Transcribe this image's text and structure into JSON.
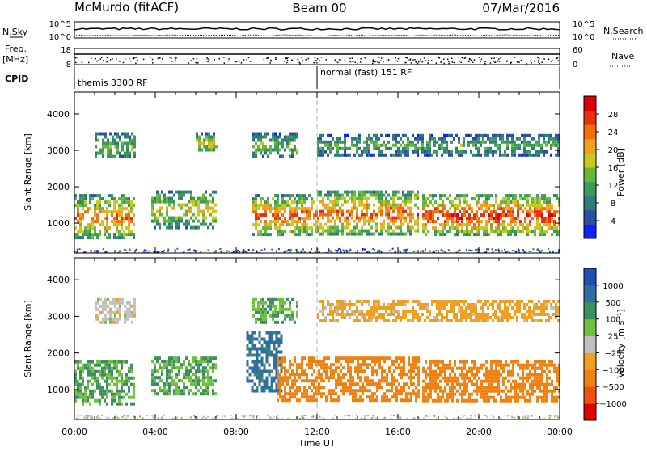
{
  "header": {
    "station": "McMurdo (fitACF)",
    "beam": "Beam 00",
    "date": "07/Mar/2016"
  },
  "strips": {
    "nsky_label": "N.Sky",
    "nsky_ticks": [
      "10^5",
      "10^0"
    ],
    "nsearch_label": "N.Search",
    "nsearch_ticks": [
      "10^5",
      "10^0"
    ],
    "freq_label": "Freq.",
    "freq_unit": "[MHz]",
    "freq_ticks": [
      "18",
      "8"
    ],
    "nave_label": "Nave",
    "nave_ticks": [
      "60",
      "0"
    ],
    "cpid_label": "CPID",
    "cpid_segments": [
      "themis 3300 RF",
      "normal (fast) 151 RF"
    ]
  },
  "colors": {
    "power_scale": [
      "#1020ff",
      "#2c4fa0",
      "#2e7d7a",
      "#3d9a5a",
      "#66b83c",
      "#c8c820",
      "#f0a020",
      "#f07010",
      "#e83010",
      "#e00000"
    ],
    "velocity_scale": [
      "#e00000",
      "#f05010",
      "#f08010",
      "#f0a020",
      "#c0c0c0",
      "#70c040",
      "#3d8f60",
      "#2e6fa0",
      "#1f4fb0"
    ],
    "marker_line": "#b0b0b0"
  },
  "chart_data": [
    {
      "type": "heatmap",
      "quantity": "Power",
      "ylabel": "Slant Range [km]",
      "xlabel": "",
      "ylim": [
        180,
        4600
      ],
      "yticks": [
        "1000",
        "2000",
        "3000",
        "4000"
      ],
      "xticks": [
        "00:00",
        "04:00",
        "08:00",
        "12:00",
        "16:00",
        "20:00",
        "00:00"
      ],
      "colorbar_label": "Power [dB]",
      "colorbar_ticks": [
        "4",
        "8",
        "12",
        "16",
        "20",
        "24",
        "28"
      ],
      "marker_time_h": 12.0,
      "echo_regions": [
        {
          "t0": 0.0,
          "t1": 3.0,
          "r0": 600,
          "r1": 1800,
          "level": 20
        },
        {
          "t0": 3.8,
          "t1": 7.0,
          "r0": 900,
          "r1": 1900,
          "level": 16
        },
        {
          "t0": 8.8,
          "t1": 12.0,
          "r0": 700,
          "r1": 1800,
          "level": 22
        },
        {
          "t0": 12.0,
          "t1": 17.0,
          "r0": 700,
          "r1": 1900,
          "level": 22
        },
        {
          "t0": 17.2,
          "t1": 24.0,
          "r0": 700,
          "r1": 1800,
          "level": 24
        },
        {
          "t0": 1.0,
          "t1": 3.0,
          "r0": 2800,
          "r1": 3500,
          "level": 12
        },
        {
          "t0": 6.0,
          "t1": 7.0,
          "r0": 3000,
          "r1": 3500,
          "level": 16
        },
        {
          "t0": 8.8,
          "t1": 11.0,
          "r0": 2800,
          "r1": 3500,
          "level": 12
        },
        {
          "t0": 12.0,
          "t1": 24.0,
          "r0": 2900,
          "r1": 3450,
          "level": 10
        }
      ]
    },
    {
      "type": "heatmap",
      "quantity": "Velocity",
      "ylabel": "Slant Range [km]",
      "xlabel": "Time UT",
      "ylim": [
        180,
        4600
      ],
      "yticks": [
        "1000",
        "2000",
        "3000",
        "4000"
      ],
      "xticks": [
        "00:00",
        "04:00",
        "08:00",
        "12:00",
        "16:00",
        "20:00",
        "00:00"
      ],
      "colorbar_label": "Velocity [m s⁻¹]",
      "colorbar_ticks": [
        "1000",
        "500",
        "100",
        "25",
        "−25",
        "−100",
        "−500",
        "−1000"
      ],
      "marker_time_h": 12.0,
      "echo_regions": [
        {
          "t0": 0.0,
          "t1": 3.0,
          "r0": 600,
          "r1": 1800,
          "level": 100
        },
        {
          "t0": 3.8,
          "t1": 7.0,
          "r0": 900,
          "r1": 1900,
          "level": 100
        },
        {
          "t0": 8.5,
          "t1": 10.2,
          "r0": 1000,
          "r1": 2600,
          "level": 700
        },
        {
          "t0": 10.0,
          "t1": 17.0,
          "r0": 700,
          "r1": 1900,
          "level": -300
        },
        {
          "t0": 17.2,
          "t1": 24.0,
          "r0": 700,
          "r1": 1800,
          "level": -200
        },
        {
          "t0": 1.0,
          "t1": 3.0,
          "r0": 2800,
          "r1": 3500,
          "level": 0
        },
        {
          "t0": 8.8,
          "t1": 11.0,
          "r0": 2800,
          "r1": 3500,
          "level": 100
        },
        {
          "t0": 12.0,
          "t1": 24.0,
          "r0": 2900,
          "r1": 3450,
          "level": -50
        }
      ]
    }
  ]
}
